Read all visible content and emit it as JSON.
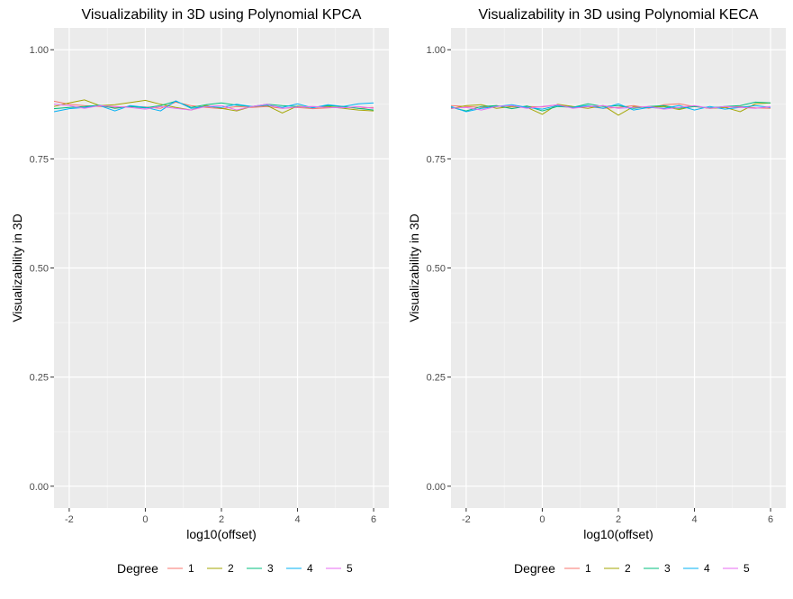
{
  "chart_data": [
    {
      "type": "line",
      "title": "Visualizability in 3D using Polynomial KPCA",
      "xlabel": "log10(offset)",
      "ylabel": "Visualizability in 3D",
      "xlim": [
        -2.4,
        6.4
      ],
      "ylim": [
        -0.05,
        1.05
      ],
      "xticks": [
        -2,
        0,
        2,
        4,
        6
      ],
      "xtick_labels": [
        "-2",
        "0",
        "2",
        "4",
        "6"
      ],
      "yticks": [
        0,
        0.25,
        0.5,
        0.75,
        1.0
      ],
      "ytick_labels": [
        "0.00",
        "0.25",
        "0.50",
        "0.75",
        "1.00"
      ],
      "grid": true,
      "legend_title": "Degree",
      "legend_position": "bottom",
      "x": [
        -2.4,
        -2.0,
        -1.6,
        -1.2,
        -0.8,
        -0.4,
        0.0,
        0.4,
        0.8,
        1.2,
        1.6,
        2.0,
        2.4,
        2.8,
        3.2,
        3.6,
        4.0,
        4.4,
        4.8,
        5.2,
        5.6,
        6.0
      ],
      "series": [
        {
          "name": "1",
          "color": "#F8766D",
          "values": [
            0.882,
            0.875,
            0.872,
            0.87,
            0.868,
            0.87,
            0.869,
            0.866,
            0.88,
            0.872,
            0.868,
            0.865,
            0.87,
            0.868,
            0.87,
            0.866,
            0.868,
            0.865,
            0.867,
            0.869,
            0.866,
            0.868
          ]
        },
        {
          "name": "2",
          "color": "#A3A500",
          "values": [
            0.87,
            0.878,
            0.885,
            0.872,
            0.874,
            0.879,
            0.884,
            0.875,
            0.868,
            0.862,
            0.872,
            0.866,
            0.86,
            0.87,
            0.872,
            0.855,
            0.871,
            0.868,
            0.87,
            0.866,
            0.862,
            0.86
          ]
        },
        {
          "name": "3",
          "color": "#00BF7D",
          "values": [
            0.865,
            0.868,
            0.87,
            0.873,
            0.866,
            0.87,
            0.867,
            0.872,
            0.882,
            0.868,
            0.874,
            0.878,
            0.873,
            0.87,
            0.875,
            0.872,
            0.87,
            0.868,
            0.872,
            0.87,
            0.866,
            0.862
          ]
        },
        {
          "name": "4",
          "color": "#00B0F6",
          "values": [
            0.858,
            0.865,
            0.868,
            0.872,
            0.86,
            0.872,
            0.868,
            0.86,
            0.883,
            0.866,
            0.87,
            0.868,
            0.875,
            0.87,
            0.873,
            0.868,
            0.876,
            0.867,
            0.874,
            0.87,
            0.876,
            0.878
          ]
        },
        {
          "name": "5",
          "color": "#E76BF3",
          "values": [
            0.875,
            0.872,
            0.866,
            0.872,
            0.87,
            0.868,
            0.864,
            0.87,
            0.866,
            0.862,
            0.87,
            0.872,
            0.862,
            0.87,
            0.875,
            0.866,
            0.869,
            0.87,
            0.868,
            0.867,
            0.87,
            0.866
          ]
        }
      ]
    },
    {
      "type": "line",
      "title": "Visualizability in 3D using Polynomial KECA",
      "xlabel": "log10(offset)",
      "ylabel": "Visualizability in 3D",
      "xlim": [
        -2.4,
        6.4
      ],
      "ylim": [
        -0.05,
        1.05
      ],
      "xticks": [
        -2,
        0,
        2,
        4,
        6
      ],
      "xtick_labels": [
        "-2",
        "0",
        "2",
        "4",
        "6"
      ],
      "yticks": [
        0,
        0.25,
        0.5,
        0.75,
        1.0
      ],
      "ytick_labels": [
        "0.00",
        "0.25",
        "0.50",
        "0.75",
        "1.00"
      ],
      "grid": true,
      "legend_title": "Degree",
      "legend_position": "bottom",
      "x": [
        -2.4,
        -2.0,
        -1.6,
        -1.2,
        -0.8,
        -0.4,
        0.0,
        0.4,
        0.8,
        1.2,
        1.6,
        2.0,
        2.4,
        2.8,
        3.2,
        3.6,
        4.0,
        4.4,
        4.8,
        5.2,
        5.6,
        6.0
      ],
      "series": [
        {
          "name": "1",
          "color": "#F8766D",
          "values": [
            0.872,
            0.87,
            0.868,
            0.872,
            0.866,
            0.87,
            0.869,
            0.874,
            0.868,
            0.87,
            0.866,
            0.868,
            0.872,
            0.866,
            0.874,
            0.876,
            0.87,
            0.866,
            0.868,
            0.87,
            0.867,
            0.866
          ]
        },
        {
          "name": "2",
          "color": "#A3A500",
          "values": [
            0.865,
            0.872,
            0.874,
            0.866,
            0.87,
            0.868,
            0.852,
            0.875,
            0.87,
            0.866,
            0.872,
            0.85,
            0.87,
            0.868,
            0.87,
            0.863,
            0.871,
            0.866,
            0.868,
            0.858,
            0.876,
            0.878
          ]
        },
        {
          "name": "3",
          "color": "#00BF7D",
          "values": [
            0.868,
            0.86,
            0.87,
            0.872,
            0.865,
            0.871,
            0.86,
            0.87,
            0.868,
            0.876,
            0.87,
            0.872,
            0.866,
            0.87,
            0.872,
            0.866,
            0.87,
            0.867,
            0.87,
            0.872,
            0.88,
            0.878
          ]
        },
        {
          "name": "4",
          "color": "#00B0F6",
          "values": [
            0.87,
            0.858,
            0.866,
            0.87,
            0.874,
            0.868,
            0.864,
            0.872,
            0.868,
            0.872,
            0.866,
            0.876,
            0.862,
            0.868,
            0.866,
            0.872,
            0.862,
            0.87,
            0.864,
            0.868,
            0.872,
            0.868
          ]
        },
        {
          "name": "5",
          "color": "#E76BF3",
          "values": [
            0.866,
            0.868,
            0.862,
            0.87,
            0.872,
            0.866,
            0.87,
            0.874,
            0.866,
            0.87,
            0.872,
            0.866,
            0.868,
            0.87,
            0.864,
            0.868,
            0.872,
            0.866,
            0.87,
            0.868,
            0.866,
            0.87
          ]
        }
      ]
    }
  ]
}
